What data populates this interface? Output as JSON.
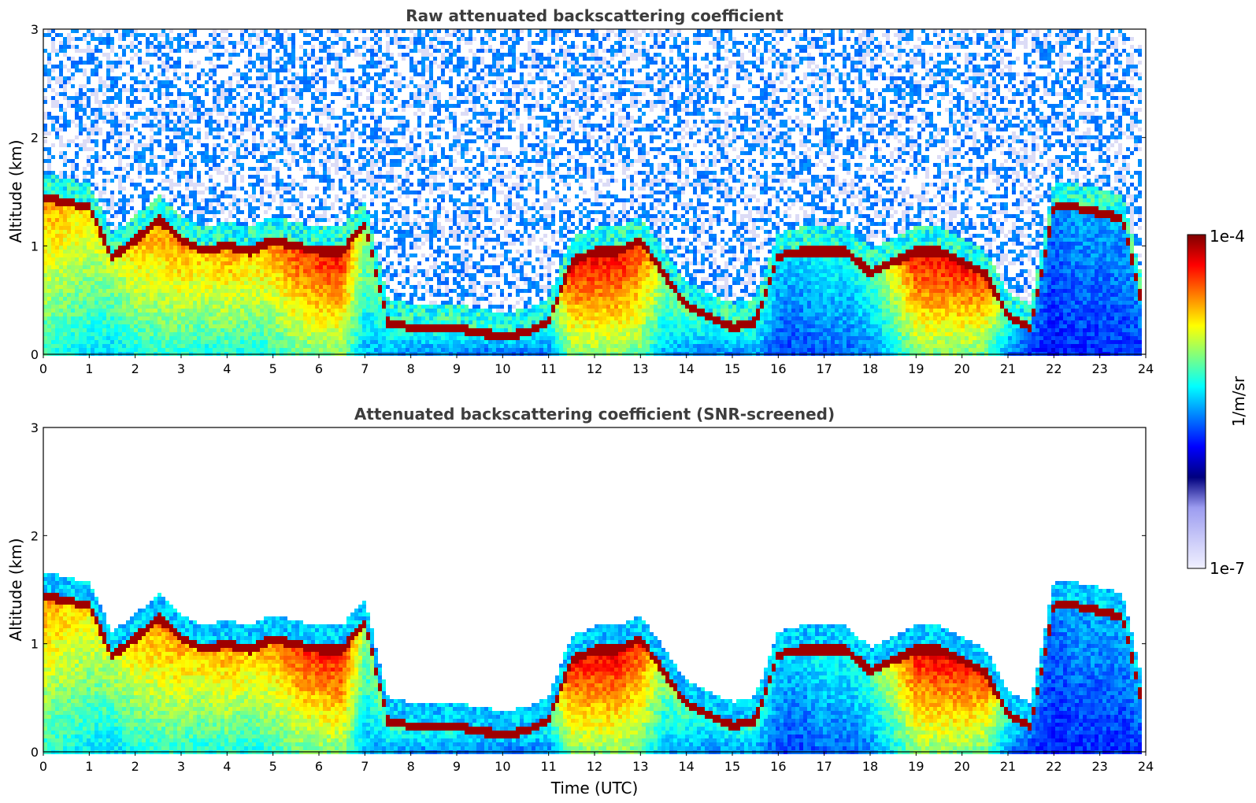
{
  "chart_data": [
    {
      "type": "heatmap",
      "title": "Raw attenuated backscattering coefficient",
      "xlabel": "",
      "ylabel": "Altitude (km)",
      "xlim": [
        0,
        24
      ],
      "ylim": [
        0,
        3
      ],
      "xticks": [
        "0",
        "1",
        "2",
        "3",
        "4",
        "5",
        "6",
        "7",
        "8",
        "9",
        "10",
        "11",
        "12",
        "13",
        "14",
        "15",
        "16",
        "17",
        "18",
        "19",
        "20",
        "21",
        "22",
        "23",
        "24"
      ],
      "yticks": [
        "0",
        "1",
        "2",
        "3"
      ],
      "noise_above_layer": true,
      "cloud_layer": {
        "hours": [
          0,
          0.5,
          1,
          1.5,
          2,
          2.5,
          3,
          3.5,
          4,
          4.5,
          5,
          5.5,
          6,
          6.5,
          7,
          7.5,
          8,
          8.5,
          9,
          9.5,
          10,
          10.5,
          11,
          11.5,
          12,
          12.5,
          13,
          13.5,
          14,
          14.5,
          15,
          15.5,
          16,
          16.5,
          17,
          17.5,
          18,
          18.5,
          19,
          19.5,
          20,
          20.5,
          21,
          21.5,
          22,
          22.5,
          23,
          23.5,
          23.9
        ],
        "top_altitude_km": [
          1.5,
          1.45,
          1.4,
          0.95,
          1.1,
          1.3,
          1.1,
          1.0,
          1.05,
          1.0,
          1.1,
          1.05,
          1.0,
          1.0,
          1.25,
          0.35,
          0.3,
          0.3,
          0.3,
          0.25,
          0.22,
          0.25,
          0.35,
          0.9,
          1.0,
          1.0,
          1.1,
          0.8,
          0.5,
          0.4,
          0.3,
          0.35,
          0.95,
          1.0,
          1.0,
          1.0,
          0.8,
          0.9,
          1.0,
          1.0,
          0.9,
          0.8,
          0.4,
          0.3,
          1.4,
          1.4,
          1.35,
          1.3,
          0.55
        ],
        "base_intensity": [
          0.75,
          0.7,
          0.65,
          0.6,
          0.7,
          0.75,
          0.75,
          0.7,
          0.75,
          0.7,
          0.75,
          0.85,
          0.88,
          0.9,
          0.55,
          0.5,
          0.45,
          0.45,
          0.45,
          0.4,
          0.4,
          0.4,
          0.45,
          0.9,
          0.92,
          0.92,
          0.85,
          0.55,
          0.5,
          0.45,
          0.45,
          0.5,
          0.35,
          0.35,
          0.4,
          0.4,
          0.45,
          0.65,
          0.9,
          0.92,
          0.9,
          0.85,
          0.45,
          0.3,
          0.25,
          0.3,
          0.3,
          0.3,
          0.3
        ]
      }
    },
    {
      "type": "heatmap",
      "title": "Attenuated backscattering coefficient (SNR-screened)",
      "xlabel": "Time (UTC)",
      "ylabel": "Altitude (km)",
      "xlim": [
        0,
        24
      ],
      "ylim": [
        0,
        3
      ],
      "xticks": [
        "0",
        "1",
        "2",
        "3",
        "4",
        "5",
        "6",
        "7",
        "8",
        "9",
        "10",
        "11",
        "12",
        "13",
        "14",
        "15",
        "16",
        "17",
        "18",
        "19",
        "20",
        "21",
        "22",
        "23",
        "24"
      ],
      "yticks": [
        "0",
        "1",
        "2",
        "3"
      ],
      "noise_above_layer": false,
      "cloud_layer": {
        "hours": [
          0,
          0.5,
          1,
          1.5,
          2,
          2.5,
          3,
          3.5,
          4,
          4.5,
          5,
          5.5,
          6,
          6.5,
          7,
          7.5,
          8,
          8.5,
          9,
          9.5,
          10,
          10.5,
          11,
          11.5,
          12,
          12.5,
          13,
          13.5,
          14,
          14.5,
          15,
          15.5,
          16,
          16.5,
          17,
          17.5,
          18,
          18.5,
          19,
          19.5,
          20,
          20.5,
          21,
          21.5,
          22,
          22.5,
          23,
          23.5,
          23.9
        ],
        "top_altitude_km": [
          1.5,
          1.45,
          1.4,
          0.95,
          1.1,
          1.3,
          1.1,
          1.0,
          1.05,
          1.0,
          1.1,
          1.05,
          1.0,
          1.0,
          1.25,
          0.35,
          0.3,
          0.3,
          0.3,
          0.25,
          0.22,
          0.25,
          0.35,
          0.9,
          1.0,
          1.0,
          1.1,
          0.8,
          0.5,
          0.4,
          0.3,
          0.35,
          0.95,
          1.0,
          1.0,
          1.0,
          0.8,
          0.9,
          1.0,
          1.0,
          0.9,
          0.8,
          0.4,
          0.3,
          1.4,
          1.4,
          1.35,
          1.3,
          0.55
        ],
        "base_intensity": [
          0.75,
          0.7,
          0.65,
          0.6,
          0.7,
          0.75,
          0.75,
          0.7,
          0.75,
          0.7,
          0.75,
          0.85,
          0.88,
          0.9,
          0.55,
          0.5,
          0.45,
          0.45,
          0.45,
          0.4,
          0.4,
          0.4,
          0.45,
          0.9,
          0.92,
          0.92,
          0.85,
          0.55,
          0.5,
          0.45,
          0.45,
          0.5,
          0.35,
          0.35,
          0.4,
          0.4,
          0.45,
          0.65,
          0.9,
          0.92,
          0.9,
          0.85,
          0.45,
          0.3,
          0.25,
          0.3,
          0.3,
          0.3,
          0.3
        ]
      }
    }
  ],
  "colorbar": {
    "colormap": "jet",
    "max_label": "1e-4",
    "min_label": "1e-7",
    "unit_label": "1/m/sr",
    "low_end_colors": [
      "#f0f0ff",
      "#c8c8f8",
      "#9c9cf0"
    ],
    "colors": [
      "#00007f",
      "#0000ff",
      "#007fff",
      "#00ffff",
      "#7fff7f",
      "#ffff00",
      "#ff7f00",
      "#ff0000",
      "#7f0000"
    ]
  }
}
